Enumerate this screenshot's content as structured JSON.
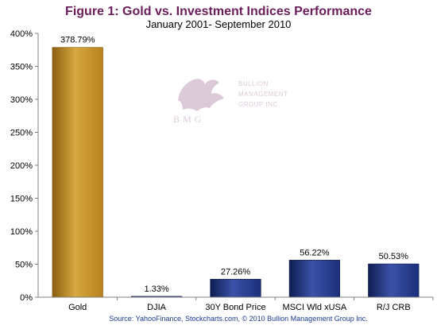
{
  "chart_data": {
    "type": "bar",
    "title": "Figure 1: Gold vs. Investment Indices Performance",
    "subtitle": "January 2001- September 2010",
    "categories": [
      "Gold",
      "DJIA",
      "30Y Bond Price",
      "MSCI Wld xUSA",
      "R/J CRB"
    ],
    "values": [
      378.79,
      1.33,
      27.26,
      56.22,
      50.53
    ],
    "data_labels": [
      "378.79%",
      "1.33%",
      "27.26%",
      "56.22%",
      "50.53%"
    ],
    "ylim": [
      0,
      400
    ],
    "yticks": [
      0,
      50,
      100,
      150,
      200,
      250,
      300,
      350,
      400
    ],
    "ytick_labels": [
      "0%",
      "50%",
      "100%",
      "150%",
      "200%",
      "250%",
      "300%",
      "350%",
      "400%"
    ],
    "grid": false,
    "legend": "none",
    "source": "Source: YahooFinance, Stockcharts.com, © 2010 Bullion Management Group Inc.",
    "watermark": {
      "line1": "BULLION",
      "line2": "MANAGEMENT",
      "line3": "GROUP INC.",
      "monogram": "BMG"
    },
    "colors": {
      "title": "#6B1E5A",
      "subtitle": "#000000",
      "source": "#1A3A8C",
      "gold_bar": "#B8821E",
      "gold_bar_light": "#D7A83F",
      "gold_bar_dark": "#8A5E10",
      "blue_bar": "#1B2F7A",
      "blue_bar_light": "#3A52A8",
      "blue_bar_dark": "#0F1D52",
      "watermark": "#D9C4D4"
    }
  }
}
